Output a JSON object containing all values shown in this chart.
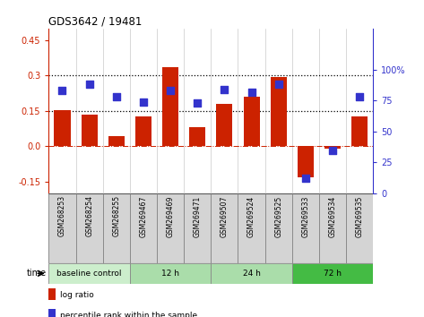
{
  "title": "GDS3642 / 19481",
  "samples": [
    "GSM268253",
    "GSM268254",
    "GSM268255",
    "GSM269467",
    "GSM269469",
    "GSM269471",
    "GSM269507",
    "GSM269524",
    "GSM269525",
    "GSM269533",
    "GSM269534",
    "GSM269535"
  ],
  "log_ratio": [
    0.155,
    0.135,
    0.045,
    0.125,
    0.335,
    0.08,
    0.18,
    0.21,
    0.295,
    -0.13,
    -0.01,
    0.125
  ],
  "percentile_rank": [
    83,
    88,
    78,
    74,
    83,
    73,
    84,
    82,
    88,
    12,
    35,
    78
  ],
  "bar_color": "#cc2200",
  "dot_color": "#3333cc",
  "ylim_left": [
    -0.2,
    0.5
  ],
  "ylim_right": [
    0,
    133.33
  ],
  "yticks_left": [
    -0.15,
    0.0,
    0.15,
    0.3,
    0.45
  ],
  "yticks_right": [
    0,
    25,
    50,
    75,
    100
  ],
  "hlines": [
    0.15,
    0.3
  ],
  "zero_line_color": "#cc2200",
  "groups": [
    {
      "label": "baseline control",
      "start": 0,
      "end": 3,
      "color": "#cceecc"
    },
    {
      "label": "12 h",
      "start": 3,
      "end": 6,
      "color": "#aaddaa"
    },
    {
      "label": "24 h",
      "start": 6,
      "end": 9,
      "color": "#aaddaa"
    },
    {
      "label": "72 h",
      "start": 9,
      "end": 12,
      "color": "#44bb44"
    }
  ],
  "time_label": "time",
  "legend_items": [
    {
      "color": "#cc2200",
      "label": "log ratio"
    },
    {
      "color": "#3333cc",
      "label": "percentile rank within the sample"
    }
  ],
  "bg_color": "#ffffff"
}
